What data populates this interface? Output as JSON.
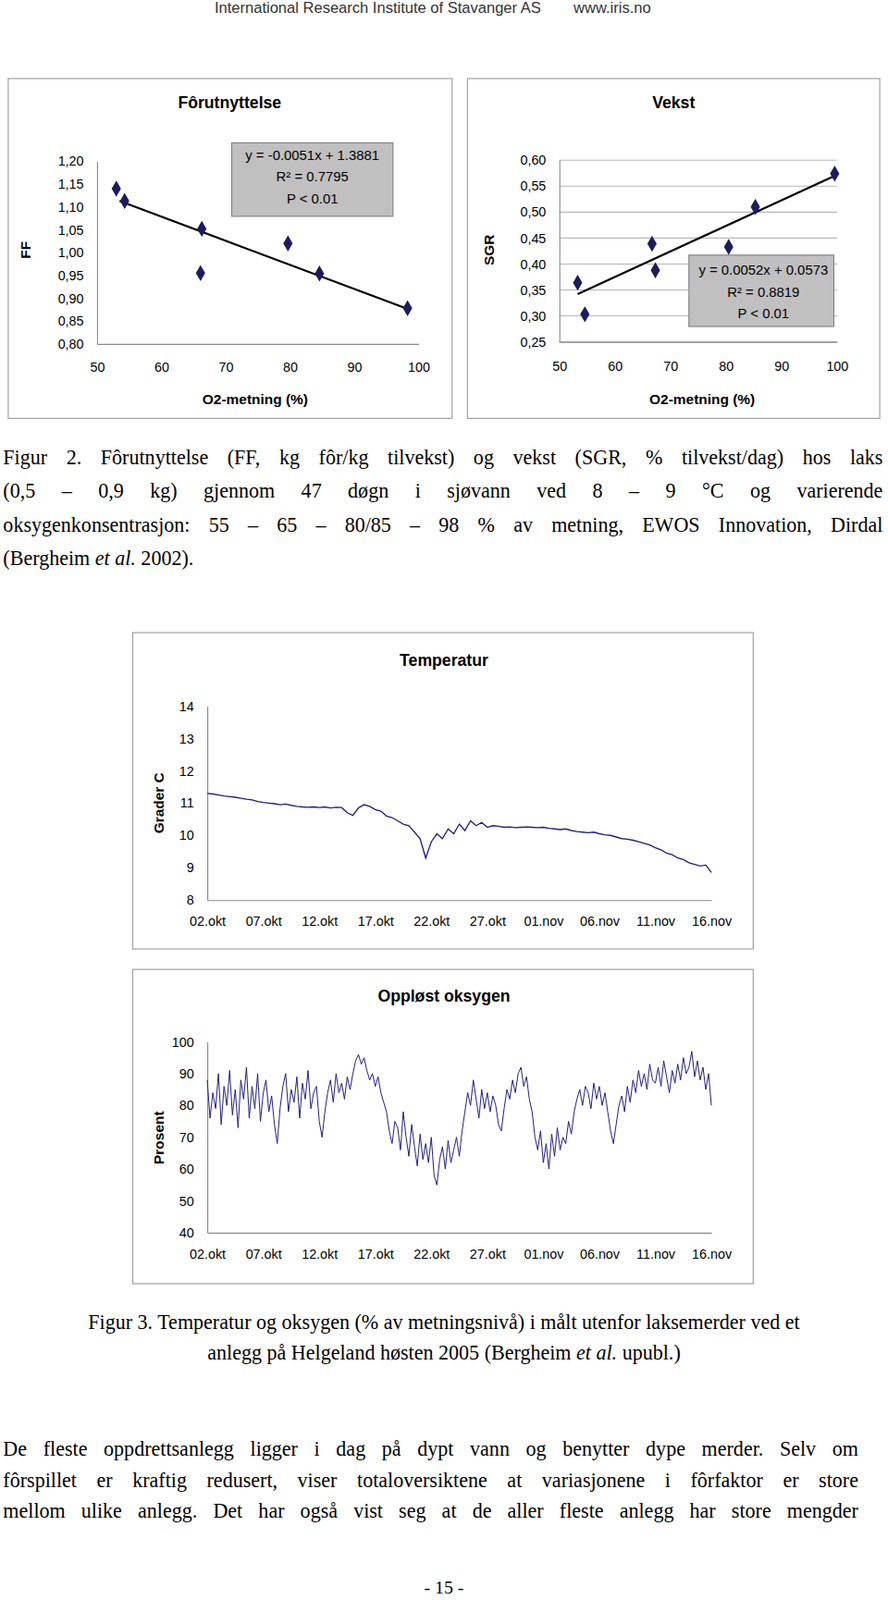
{
  "header": {
    "institute": "International Research Institute of Stavanger AS",
    "url": "www.iris.no"
  },
  "chart_data": [
    {
      "type": "scatter",
      "title": "Fôrutnyttelse",
      "x_label": "O2-metning (%)",
      "y_label": "FF",
      "x": [
        53,
        54.3,
        66.3,
        66.1,
        79.7,
        84.6,
        98.3
      ],
      "values": [
        1.14,
        1.113,
        1.052,
        0.955,
        1.02,
        0.954,
        0.878
      ],
      "color": "#1c1c5c",
      "marker": "diamond",
      "trendline": {
        "x": [
          53.5,
          98.4
        ],
        "y": [
          1.113,
          0.876
        ]
      },
      "annotations": [
        "y = -0.0051x + 1.3881",
        "R² = 0.7795",
        "P < 0.01"
      ],
      "xlim": [
        50,
        100
      ],
      "xticks": [
        50,
        60,
        70,
        80,
        90,
        100
      ],
      "ylim": [
        0.8,
        1.2
      ],
      "yticks": [
        {
          "value": 0.8,
          "label": "0,80"
        },
        {
          "value": 0.85,
          "label": "0,85"
        },
        {
          "value": 0.9,
          "label": "0,90"
        },
        {
          "value": 0.95,
          "label": "0,95"
        },
        {
          "value": 1.0,
          "label": "1,00"
        },
        {
          "value": 1.05,
          "label": "1,05"
        },
        {
          "value": 1.1,
          "label": "1,10"
        },
        {
          "value": 1.15,
          "label": "1,15"
        },
        {
          "value": 1.2,
          "label": "1,20"
        }
      ],
      "grid": false
    },
    {
      "type": "scatter",
      "title": "Vekst",
      "x_label": "O2-metning (%)",
      "y_label": "SGR",
      "x": [
        53.3,
        54.6,
        66.7,
        67.3,
        80.5,
        85.3,
        99.6
      ],
      "values": [
        0.364,
        0.303,
        0.439,
        0.388,
        0.433,
        0.51,
        0.574
      ],
      "color": "#1c1c5c",
      "marker": "diamond",
      "trendline": {
        "x": [
          53.3,
          100
        ],
        "y": [
          0.342,
          0.572
        ]
      },
      "annotations": [
        "y = 0.0052x + 0.0573",
        "R² = 0.8819",
        "P < 0.01"
      ],
      "xlim": [
        50,
        100
      ],
      "xticks": [
        50,
        60,
        70,
        80,
        90,
        100
      ],
      "ylim": [
        0.25,
        0.6
      ],
      "yticks": [
        {
          "value": 0.25,
          "label": "0,25"
        },
        {
          "value": 0.3,
          "label": "0,30"
        },
        {
          "value": 0.35,
          "label": "0,35"
        },
        {
          "value": 0.4,
          "label": "0,40"
        },
        {
          "value": 0.45,
          "label": "0,45"
        },
        {
          "value": 0.5,
          "label": "0,50"
        },
        {
          "value": 0.55,
          "label": "0,55"
        },
        {
          "value": 0.6,
          "label": "0,60"
        }
      ],
      "grid": true
    },
    {
      "type": "line",
      "title": "Temperatur",
      "y_label": "Grader C",
      "x": [
        0,
        0.5,
        1,
        1.5,
        2,
        2.5,
        3,
        3.5,
        4,
        4.5,
        5,
        5.5,
        6,
        6.5,
        7,
        7.5,
        8,
        8.5,
        9,
        9.5,
        10,
        10.5,
        11,
        11.5,
        12,
        12.5,
        13,
        13.5,
        14,
        14.5,
        15,
        15.5,
        16,
        16.5,
        17,
        17.5,
        18,
        18.5,
        19,
        19.5,
        20,
        20.5,
        21,
        21.5,
        22,
        22.5,
        23,
        23.5,
        24,
        24.5,
        25,
        25.5,
        26,
        26.5,
        27,
        27.5,
        28,
        28.5,
        29,
        29.5,
        30,
        30.5,
        31,
        31.5,
        32,
        32.5,
        33,
        33.5,
        34,
        34.5,
        35,
        35.5,
        36,
        36.5,
        37,
        37.5,
        38,
        38.5,
        39,
        39.5,
        40,
        40.5,
        41,
        41.5,
        42,
        42.5,
        43,
        43.5,
        44,
        44.5,
        45
      ],
      "series": [
        {
          "color": "#1f1f80",
          "values": [
            11.3,
            11.28,
            11.25,
            11.22,
            11.2,
            11.18,
            11.15,
            11.12,
            11.1,
            11.05,
            11.02,
            11.0,
            10.98,
            10.95,
            10.97,
            10.93,
            10.9,
            10.88,
            10.87,
            10.88,
            10.86,
            10.88,
            10.85,
            10.87,
            10.86,
            10.7,
            10.62,
            10.85,
            10.95,
            10.9,
            10.8,
            10.75,
            10.6,
            10.55,
            10.45,
            10.35,
            10.3,
            10.1,
            9.9,
            9.3,
            9.8,
            10.05,
            9.9,
            10.2,
            10.05,
            10.35,
            10.15,
            10.45,
            10.3,
            10.4,
            10.25,
            10.3,
            10.28,
            10.25,
            10.26,
            10.24,
            10.25,
            10.26,
            10.25,
            10.24,
            10.25,
            10.22,
            10.2,
            10.18,
            10.2,
            10.15,
            10.12,
            10.1,
            10.08,
            10.1,
            10.05,
            10.02,
            10.0,
            9.95,
            9.9,
            9.88,
            9.85,
            9.8,
            9.75,
            9.7,
            9.62,
            9.55,
            9.45,
            9.4,
            9.3,
            9.25,
            9.15,
            9.1,
            9.05,
            9.08,
            8.85
          ]
        }
      ],
      "xlim": [
        0,
        45
      ],
      "xticks": [
        {
          "value": 0,
          "label": "02.okt"
        },
        {
          "value": 5,
          "label": "07.okt"
        },
        {
          "value": 10,
          "label": "12.okt"
        },
        {
          "value": 15,
          "label": "17.okt"
        },
        {
          "value": 20,
          "label": "22.okt"
        },
        {
          "value": 25,
          "label": "27.okt"
        },
        {
          "value": 30,
          "label": "01.nov"
        },
        {
          "value": 35,
          "label": "06.nov"
        },
        {
          "value": 40,
          "label": "11.nov"
        },
        {
          "value": 45,
          "label": "16.nov"
        }
      ],
      "ylim": [
        8,
        14
      ],
      "yticks": [
        8,
        9,
        10,
        11,
        12,
        13,
        14
      ],
      "grid": false
    },
    {
      "type": "line",
      "title": "Oppløst oksygen",
      "y_label": "Prosent",
      "x": [
        0,
        0.25,
        0.5,
        0.75,
        1,
        1.25,
        1.5,
        1.75,
        2,
        2.25,
        2.5,
        2.75,
        3,
        3.25,
        3.5,
        3.75,
        4,
        4.25,
        4.5,
        4.75,
        5,
        5.25,
        5.5,
        5.75,
        6,
        6.25,
        6.5,
        6.75,
        7,
        7.25,
        7.5,
        7.75,
        8,
        8.25,
        8.5,
        8.75,
        9,
        9.25,
        9.5,
        9.75,
        10,
        10.25,
        10.5,
        10.75,
        11,
        11.25,
        11.5,
        11.75,
        12,
        12.25,
        12.5,
        12.75,
        13,
        13.25,
        13.5,
        13.75,
        14,
        14.25,
        14.5,
        14.75,
        15,
        15.25,
        15.5,
        15.75,
        16,
        16.25,
        16.5,
        16.75,
        17,
        17.25,
        17.5,
        17.75,
        18,
        18.25,
        18.5,
        18.75,
        19,
        19.25,
        19.5,
        19.75,
        20,
        20.25,
        20.5,
        20.75,
        21,
        21.25,
        21.5,
        21.75,
        22,
        22.25,
        22.5,
        22.75,
        23,
        23.25,
        23.5,
        23.75,
        24,
        24.25,
        24.5,
        24.75,
        25,
        25.25,
        25.5,
        25.75,
        26,
        26.25,
        26.5,
        26.75,
        27,
        27.25,
        27.5,
        27.75,
        28,
        28.25,
        28.5,
        28.75,
        29,
        29.25,
        29.5,
        29.75,
        30,
        30.25,
        30.5,
        30.75,
        31,
        31.25,
        31.5,
        31.75,
        32,
        32.25,
        32.5,
        32.75,
        33,
        33.25,
        33.5,
        33.75,
        34,
        34.25,
        34.5,
        34.75,
        35,
        35.25,
        35.5,
        35.75,
        36,
        36.25,
        36.5,
        36.75,
        37,
        37.25,
        37.5,
        37.75,
        38,
        38.25,
        38.5,
        38.75,
        39,
        39.25,
        39.5,
        39.75,
        40,
        40.25,
        40.5,
        40.75,
        41,
        41.25,
        41.5,
        41.75,
        42,
        42.25,
        42.5,
        42.75,
        43,
        43.25,
        43.5,
        43.75,
        44,
        44.25,
        44.5,
        44.75,
        45
      ],
      "series": [
        {
          "color": "#1f1f80",
          "values": [
            88,
            76,
            84,
            79,
            90,
            74,
            86,
            80,
            91,
            77,
            85,
            73,
            88,
            82,
            92,
            76,
            86,
            79,
            90,
            75,
            84,
            88,
            78,
            83,
            74,
            68,
            79,
            86,
            90,
            78,
            85,
            81,
            89,
            76,
            87,
            82,
            91,
            79,
            84,
            86,
            75,
            70,
            78,
            84,
            88,
            81,
            90,
            84,
            87,
            82,
            89,
            85,
            90,
            94,
            96,
            93,
            95,
            91,
            88,
            90,
            86,
            89,
            84,
            81,
            78,
            72,
            68,
            75,
            73,
            66,
            78,
            70,
            64,
            74,
            67,
            61,
            71,
            63,
            68,
            62,
            70,
            58,
            55,
            63,
            67,
            60,
            69,
            62,
            66,
            70,
            64,
            72,
            78,
            84,
            80,
            88,
            82,
            76,
            85,
            79,
            84,
            78,
            83,
            80,
            74,
            72,
            79,
            85,
            82,
            88,
            84,
            90,
            92,
            86,
            89,
            82,
            78,
            70,
            66,
            72,
            62,
            68,
            60,
            71,
            64,
            73,
            66,
            70,
            68,
            75,
            71,
            78,
            82,
            85,
            80,
            86,
            84,
            79,
            87,
            82,
            86,
            80,
            84,
            78,
            72,
            68,
            74,
            80,
            83,
            78,
            86,
            81,
            88,
            84,
            91,
            86,
            90,
            85,
            93,
            88,
            87,
            92,
            86,
            94,
            89,
            84,
            91,
            87,
            93,
            88,
            95,
            90,
            92,
            97,
            89,
            94,
            88,
            92,
            85,
            90,
            80
          ]
        }
      ],
      "xlim": [
        0,
        45
      ],
      "xticks": [
        {
          "value": 0,
          "label": "02.okt"
        },
        {
          "value": 5,
          "label": "07.okt"
        },
        {
          "value": 10,
          "label": "12.okt"
        },
        {
          "value": 15,
          "label": "17.okt"
        },
        {
          "value": 20,
          "label": "22.okt"
        },
        {
          "value": 25,
          "label": "27.okt"
        },
        {
          "value": 30,
          "label": "01.nov"
        },
        {
          "value": 35,
          "label": "06.nov"
        },
        {
          "value": 40,
          "label": "11.nov"
        },
        {
          "value": 45,
          "label": "16.nov"
        }
      ],
      "ylim": [
        40,
        100
      ],
      "yticks": [
        40,
        50,
        60,
        70,
        80,
        90,
        100
      ],
      "grid": false
    }
  ],
  "captions": [
    {
      "lines": [
        [
          {
            "text": "Figur 2. Fôrutnyttelse (FF, kg fôr/kg tilvekst) og vekst (SGR, % tilvekst/dag) hos laks",
            "style": "normal"
          }
        ],
        [
          {
            "text": "(0,5 – 0,9 kg) gjennom 47 døgn i sjøvann ved 8 – 9 °C og varierende",
            "style": "normal"
          }
        ],
        [
          {
            "text": "oksygenkonsentrasjon: 55 – 65 – 80/85 – 98 % av metning, EWOS Innovation, Dirdal",
            "style": "normal"
          }
        ],
        [
          {
            "text": "(Bergheim ",
            "style": "normal"
          },
          {
            "text": "et al.",
            "style": "italic"
          },
          {
            "text": " 2002).",
            "style": "normal"
          }
        ]
      ]
    },
    {
      "lines": [
        [
          {
            "text": "Figur 3. Temperatur og oksygen (% av metningsnivå) i målt utenfor laksemerder ved et",
            "style": "normal"
          }
        ],
        [
          {
            "text": "anlegg på Helgeland høsten 2005 (Bergheim ",
            "style": "normal"
          },
          {
            "text": "et al.",
            "style": "italic"
          },
          {
            "text": " upubl.)",
            "style": "normal"
          }
        ]
      ]
    }
  ],
  "body": {
    "lines": [
      "De fleste oppdrettsanlegg ligger i dag på dypt vann og benytter dype merder. Selv om",
      "fôrspillet er kraftig redusert, viser totaloversiktene at variasjonene i fôrfaktor er store",
      "mellom ulike anlegg. Det har også vist seg at de aller fleste anlegg har store mengder"
    ]
  },
  "page_number": "- 15 -"
}
